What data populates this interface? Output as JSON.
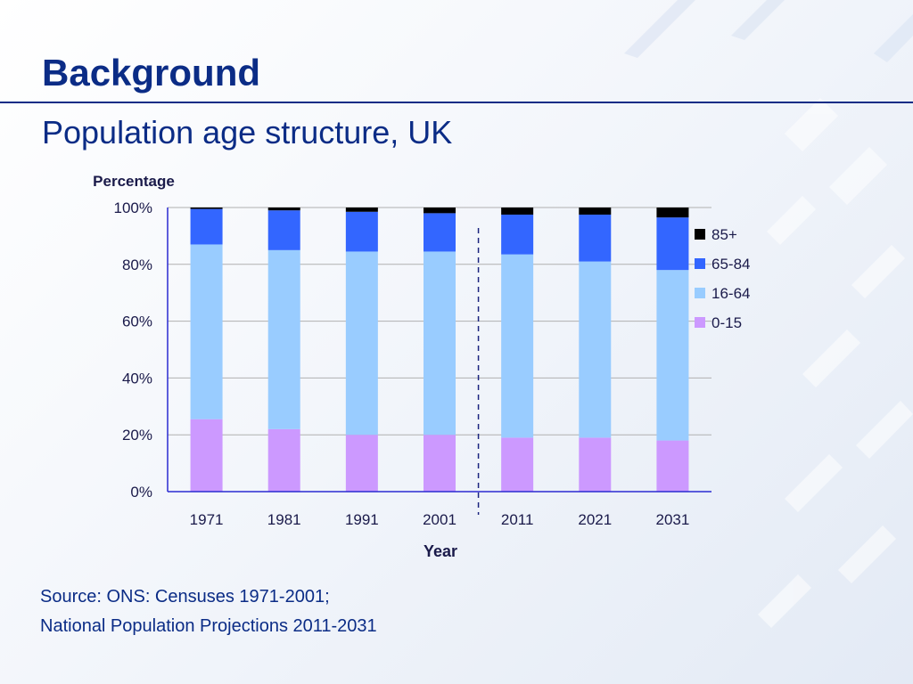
{
  "slide": {
    "title": "Background",
    "subtitle": "Population age structure, UK",
    "source_lines": [
      "Source: ONS: Censuses 1971-2001;",
      "National Population Projections 2011-2031"
    ]
  },
  "colors": {
    "title": "#0b2c86",
    "axis": "#2b2bd1",
    "grid": "#b0b0b0",
    "divider": "#1a237e"
  },
  "chart_data": {
    "type": "bar",
    "stacked": true,
    "title": "",
    "xlabel": "Year",
    "ylabel": "Percentage",
    "ylim": [
      0,
      100
    ],
    "y_ticks": [
      0,
      20,
      40,
      60,
      80,
      100
    ],
    "y_tick_labels": [
      "0%",
      "20%",
      "40%",
      "60%",
      "80%",
      "100%"
    ],
    "grid": true,
    "legend": "right",
    "divider_between": [
      "2001",
      "2011"
    ],
    "categories": [
      "1971",
      "1981",
      "1991",
      "2001",
      "2011",
      "2021",
      "2031"
    ],
    "series": [
      {
        "name": "0-15",
        "color": "#cc99ff",
        "values": [
          25.5,
          22,
          20,
          20,
          19,
          19,
          18
        ]
      },
      {
        "name": "16-64",
        "color": "#99ccff",
        "values": [
          61.5,
          63,
          64.5,
          64.5,
          64.5,
          62,
          60
        ]
      },
      {
        "name": "65-84",
        "color": "#3366ff",
        "values": [
          12.5,
          14,
          14,
          13.5,
          14,
          16.5,
          18.5
        ]
      },
      {
        "name": "85+",
        "color": "#000000",
        "values": [
          0.5,
          1,
          1.5,
          2,
          2.5,
          2.5,
          3.5
        ]
      }
    ]
  }
}
